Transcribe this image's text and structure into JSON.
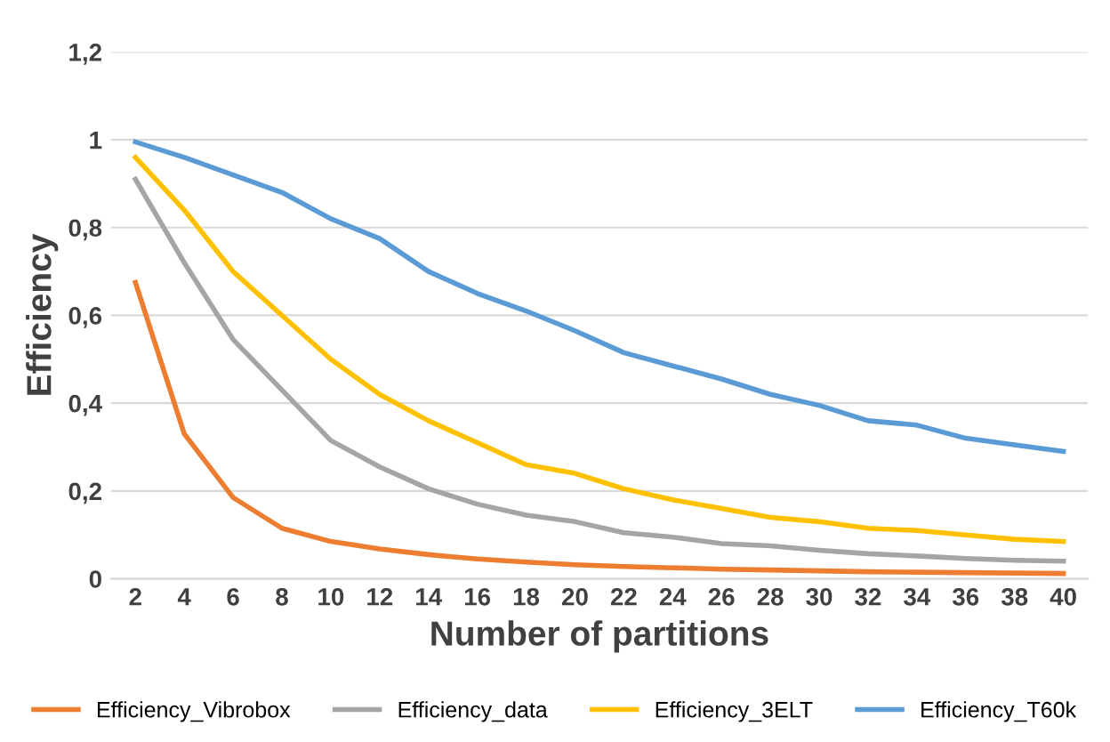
{
  "chart_data": {
    "type": "line",
    "xlabel": "Number of partitions",
    "ylabel": "Efficiency",
    "categories": [
      "2",
      "4",
      "6",
      "8",
      "10",
      "12",
      "14",
      "16",
      "18",
      "20",
      "22",
      "24",
      "26",
      "28",
      "30",
      "32",
      "34",
      "36",
      "38",
      "40"
    ],
    "series": [
      {
        "name": "Efficiency_Vibrobox",
        "color": "#ed7d31",
        "values": [
          0.675,
          0.33,
          0.185,
          0.115,
          0.085,
          0.068,
          0.055,
          0.045,
          0.038,
          0.032,
          0.028,
          0.025,
          0.022,
          0.02,
          0.018,
          0.016,
          0.015,
          0.014,
          0.013,
          0.012
        ]
      },
      {
        "name": "Efficiency_data",
        "color": "#a5a5a5",
        "values": [
          0.91,
          0.72,
          0.545,
          0.43,
          0.315,
          0.255,
          0.205,
          0.17,
          0.145,
          0.13,
          0.105,
          0.095,
          0.08,
          0.075,
          0.065,
          0.057,
          0.052,
          0.046,
          0.042,
          0.04
        ]
      },
      {
        "name": "Efficiency_3ELT",
        "color": "#ffc000",
        "values": [
          0.96,
          0.84,
          0.7,
          0.6,
          0.5,
          0.42,
          0.36,
          0.31,
          0.26,
          0.24,
          0.205,
          0.18,
          0.16,
          0.14,
          0.13,
          0.115,
          0.11,
          0.1,
          0.09,
          0.085
        ]
      },
      {
        "name": "Efficiency_T60k",
        "color": "#5b9bd5",
        "values": [
          0.995,
          0.96,
          0.92,
          0.88,
          0.82,
          0.775,
          0.7,
          0.65,
          0.61,
          0.565,
          0.515,
          0.485,
          0.455,
          0.42,
          0.395,
          0.36,
          0.35,
          0.32,
          0.305,
          0.29
        ]
      }
    ],
    "ylim": [
      0,
      1.2
    ],
    "yticks": [
      0,
      {
        "value": 0.2,
        "label": "0,2"
      },
      {
        "value": 0.4,
        "label": "0,4"
      },
      {
        "value": 0.6,
        "label": "0,6"
      },
      {
        "value": 0.8,
        "label": "0,8"
      },
      1,
      {
        "value": 1.2,
        "label": "1,2"
      }
    ],
    "grid": "y",
    "legend": "bottom",
    "marker": "none",
    "line_style": "solid"
  }
}
